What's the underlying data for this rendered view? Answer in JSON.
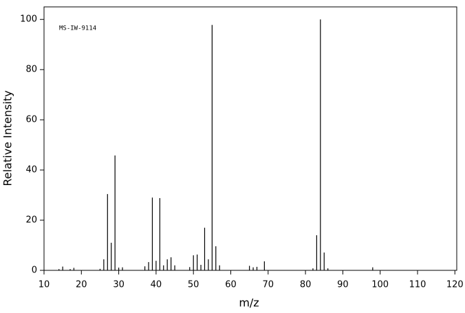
{
  "chart_data": {
    "type": "bar",
    "annotation": "MS-IW-9114",
    "xlabel": "m/z",
    "ylabel": "Relative Intensity",
    "x": [
      14,
      15,
      17,
      18,
      25,
      26,
      27,
      28,
      29,
      30,
      31,
      37,
      38,
      39,
      40,
      41,
      42,
      43,
      44,
      45,
      49,
      50,
      51,
      52,
      53,
      54,
      55,
      56,
      57,
      65,
      66,
      67,
      69,
      82,
      83,
      84,
      85,
      86,
      98
    ],
    "values": [
      0.5,
      1.5,
      0.5,
      1,
      0.6,
      4.4,
      30.4,
      11,
      45.8,
      1.1,
      1.2,
      1.6,
      3.3,
      29,
      3.8,
      28.8,
      2,
      4.4,
      5.2,
      2,
      1.3,
      6,
      6.3,
      2.2,
      17,
      4.4,
      97.8,
      9.6,
      2,
      1.8,
      1.2,
      1.4,
      3.6,
      0.8,
      14,
      100,
      7.1,
      0.8,
      1.2
    ],
    "color": "#000000",
    "xlim": [
      10,
      120.5
    ],
    "xticks": [
      10,
      20,
      30,
      40,
      50,
      60,
      70,
      80,
      90,
      100,
      110,
      120
    ],
    "ylim": [
      0,
      105
    ],
    "yticks": [
      0,
      20,
      40,
      60,
      80,
      100
    ]
  }
}
